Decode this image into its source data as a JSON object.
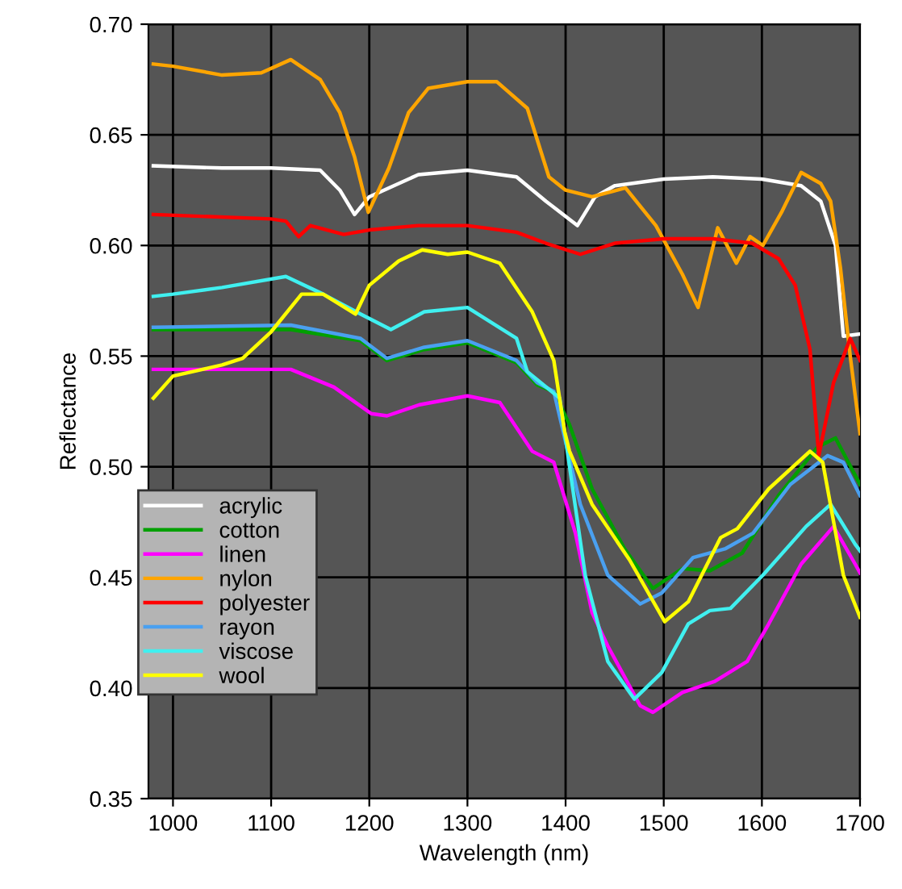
{
  "chart_data": {
    "type": "line",
    "xlabel": "Wavelength (nm)",
    "ylabel": "Reflectance",
    "xlim": [
      975,
      1700
    ],
    "ylim": [
      0.35,
      0.7
    ],
    "xticks": [
      1000,
      1100,
      1200,
      1300,
      1400,
      1500,
      1600,
      1700
    ],
    "yticks": [
      {
        "value": 0.35,
        "label": "0.35"
      },
      {
        "value": 0.4,
        "label": "0.40"
      },
      {
        "value": 0.45,
        "label": "0.45"
      },
      {
        "value": 0.5,
        "label": "0.50"
      },
      {
        "value": 0.55,
        "label": "0.55"
      },
      {
        "value": 0.6,
        "label": "0.60"
      },
      {
        "value": 0.65,
        "label": "0.65"
      },
      {
        "value": 0.7,
        "label": "0.70"
      }
    ],
    "grid": true,
    "legend": "bottom left",
    "marker": "none",
    "line_style": "solid",
    "series": [
      {
        "name": "acrylic",
        "color": "#ffffff",
        "x": [
          980,
          1050,
          1100,
          1150,
          1170,
          1185,
          1200,
          1250,
          1300,
          1350,
          1380,
          1412,
          1430,
          1450,
          1500,
          1550,
          1600,
          1640,
          1660,
          1675,
          1683,
          1700
        ],
        "values": [
          0.636,
          0.635,
          0.635,
          0.634,
          0.625,
          0.614,
          0.622,
          0.632,
          0.634,
          0.631,
          0.62,
          0.609,
          0.622,
          0.627,
          0.63,
          0.631,
          0.63,
          0.627,
          0.62,
          0.6,
          0.559,
          0.56
        ]
      },
      {
        "name": "cotton",
        "color": "#00a000",
        "x": [
          980,
          1120,
          1191,
          1218,
          1256,
          1300,
          1350,
          1371,
          1388,
          1404,
          1427,
          1460,
          1489,
          1519,
          1547,
          1580,
          1617,
          1657,
          1675,
          1700
        ],
        "values": [
          0.562,
          0.562,
          0.557,
          0.548,
          0.553,
          0.556,
          0.547,
          0.537,
          0.534,
          0.519,
          0.49,
          0.463,
          0.445,
          0.454,
          0.453,
          0.461,
          0.487,
          0.509,
          0.513,
          0.492
        ]
      },
      {
        "name": "linen",
        "color": "#ff00ff",
        "x": [
          980,
          1120,
          1164,
          1202,
          1218,
          1251,
          1300,
          1333,
          1366,
          1388,
          1410,
          1427,
          1443,
          1476,
          1489,
          1519,
          1552,
          1585,
          1607,
          1640,
          1673,
          1695,
          1700
        ],
        "values": [
          0.544,
          0.544,
          0.536,
          0.524,
          0.523,
          0.528,
          0.532,
          0.529,
          0.507,
          0.502,
          0.47,
          0.434,
          0.419,
          0.392,
          0.389,
          0.398,
          0.403,
          0.412,
          0.429,
          0.456,
          0.473,
          0.456,
          0.452
        ]
      },
      {
        "name": "nylon",
        "color": "#ffa500",
        "x": [
          980,
          1000,
          1050,
          1090,
          1120,
          1150,
          1170,
          1185,
          1199,
          1220,
          1240,
          1260,
          1300,
          1330,
          1361,
          1383,
          1400,
          1427,
          1461,
          1492,
          1519,
          1535,
          1545,
          1555,
          1574,
          1588,
          1601,
          1620,
          1640,
          1660,
          1670,
          1680,
          1690,
          1700
        ],
        "values": [
          0.682,
          0.681,
          0.677,
          0.678,
          0.684,
          0.675,
          0.66,
          0.64,
          0.615,
          0.635,
          0.66,
          0.671,
          0.674,
          0.674,
          0.662,
          0.631,
          0.625,
          0.622,
          0.626,
          0.609,
          0.587,
          0.572,
          0.59,
          0.608,
          0.592,
          0.604,
          0.6,
          0.615,
          0.633,
          0.628,
          0.62,
          0.59,
          0.55,
          0.515
        ]
      },
      {
        "name": "polyester",
        "color": "#ff0000",
        "x": [
          980,
          1100,
          1115,
          1128,
          1140,
          1174,
          1200,
          1250,
          1300,
          1350,
          1380,
          1415,
          1450,
          1500,
          1550,
          1590,
          1617,
          1634,
          1649,
          1658,
          1673,
          1690,
          1700
        ],
        "values": [
          0.614,
          0.612,
          0.611,
          0.604,
          0.609,
          0.605,
          0.607,
          0.609,
          0.609,
          0.606,
          0.601,
          0.596,
          0.601,
          0.603,
          0.603,
          0.601,
          0.594,
          0.582,
          0.553,
          0.505,
          0.538,
          0.558,
          0.548
        ]
      },
      {
        "name": "rayon",
        "color": "#4aa0f0",
        "x": [
          980,
          1120,
          1191,
          1218,
          1256,
          1300,
          1350,
          1371,
          1388,
          1415,
          1443,
          1476,
          1498,
          1530,
          1563,
          1591,
          1629,
          1667,
          1683,
          1700
        ],
        "values": [
          0.563,
          0.564,
          0.558,
          0.549,
          0.554,
          0.557,
          0.548,
          0.538,
          0.534,
          0.483,
          0.451,
          0.438,
          0.443,
          0.459,
          0.463,
          0.47,
          0.492,
          0.505,
          0.502,
          0.487
        ]
      },
      {
        "name": "viscose",
        "color": "#40f0f0",
        "x": [
          980,
          1000,
          1050,
          1115,
          1153,
          1191,
          1222,
          1256,
          1300,
          1350,
          1361,
          1394,
          1420,
          1443,
          1470,
          1498,
          1525,
          1547,
          1568,
          1601,
          1645,
          1670,
          1695,
          1700
        ],
        "values": [
          0.577,
          0.578,
          0.581,
          0.586,
          0.578,
          0.569,
          0.562,
          0.57,
          0.572,
          0.558,
          0.543,
          0.531,
          0.451,
          0.412,
          0.395,
          0.407,
          0.429,
          0.435,
          0.436,
          0.451,
          0.473,
          0.483,
          0.465,
          0.462
        ]
      },
      {
        "name": "wool",
        "color": "#ffff00",
        "x": [
          980,
          1000,
          1050,
          1071,
          1100,
          1131,
          1153,
          1186,
          1200,
          1230,
          1254,
          1280,
          1300,
          1333,
          1366,
          1388,
          1399,
          1404,
          1427,
          1465,
          1501,
          1525,
          1558,
          1575,
          1607,
          1649,
          1662,
          1683,
          1700
        ],
        "values": [
          0.531,
          0.541,
          0.546,
          0.549,
          0.561,
          0.578,
          0.578,
          0.569,
          0.582,
          0.593,
          0.598,
          0.596,
          0.597,
          0.592,
          0.57,
          0.548,
          0.516,
          0.507,
          0.483,
          0.458,
          0.43,
          0.439,
          0.468,
          0.472,
          0.49,
          0.507,
          0.502,
          0.451,
          0.432
        ]
      }
    ]
  }
}
